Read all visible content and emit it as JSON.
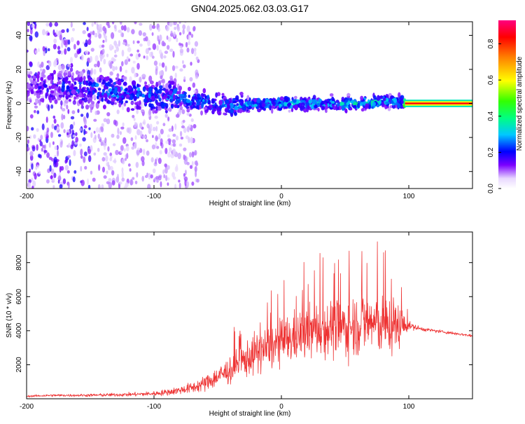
{
  "title": "GN04.2025.062.03.03.G17",
  "colors": {
    "snr_line": "#ee3333",
    "spec_low": "#d8c8f8",
    "spec_mid": "#7722ee",
    "spec_high": "#00cccc",
    "background": "#ffffff"
  },
  "chart_data": [
    {
      "type": "heatmap",
      "xlabel": "Height of straight line (km)",
      "ylabel": "Frequency (Hz)",
      "xlim": [
        -200,
        150
      ],
      "ylim": [
        -50,
        48
      ],
      "xticks": [
        -200,
        -100,
        0,
        100
      ],
      "yticks": [
        -40,
        -20,
        0,
        20,
        40
      ],
      "colorbar": {
        "label": "Normalized spectral amplitude",
        "range": [
          0.0,
          0.93
        ],
        "ticks": [
          "0.0",
          "0.2",
          "0.4",
          "0.6",
          "0.8"
        ],
        "colormap": "rainbow (white-violet-blue-cyan-green-yellow-red-magenta)"
      },
      "ridge": {
        "description": "dominant frequency vs height",
        "x": [
          -200,
          -170,
          -140,
          -110,
          -80,
          -60,
          -40,
          -20,
          0,
          20,
          40,
          60,
          80,
          95,
          100,
          120,
          150
        ],
        "frequency": [
          10,
          10,
          8,
          5,
          3,
          1,
          -2,
          0,
          0,
          0,
          0,
          0,
          1,
          1,
          0,
          0,
          0
        ],
        "amplitude": [
          0.15,
          0.2,
          0.25,
          0.25,
          0.25,
          0.25,
          0.25,
          0.3,
          0.3,
          0.3,
          0.3,
          0.35,
          0.3,
          0.3,
          0.85,
          0.85,
          0.85
        ]
      }
    },
    {
      "type": "line",
      "xlabel": "Height of straight line (km)",
      "ylabel": "SNR (10 * v/v)",
      "xlim": [
        -200,
        150
      ],
      "ylim": [
        0,
        9800
      ],
      "xticks": [
        -200,
        -100,
        0,
        100
      ],
      "yticks": [
        2000,
        4000,
        6000,
        8000
      ],
      "grid": false,
      "series": [
        {
          "x": [
            -200,
            -180,
            -160,
            -140,
            -120,
            -100,
            -90,
            -80,
            -70,
            -60,
            -50,
            -40,
            -30,
            -20,
            -10,
            0,
            10,
            20,
            30,
            40,
            50,
            60,
            70,
            80,
            90,
            100,
            110,
            120,
            130,
            140,
            150
          ],
          "y": [
            150,
            200,
            200,
            220,
            250,
            300,
            380,
            500,
            650,
            900,
            1300,
            1700,
            2200,
            2700,
            3000,
            3300,
            3600,
            3900,
            4100,
            4200,
            4200,
            4400,
            4500,
            4300,
            4300,
            4300,
            4100,
            4000,
            3900,
            3800,
            3700
          ],
          "spread": [
            60,
            80,
            80,
            100,
            120,
            150,
            200,
            250,
            350,
            500,
            700,
            900,
            1100,
            1300,
            1400,
            1500,
            1600,
            1700,
            1800,
            1900,
            1900,
            2000,
            2000,
            1900,
            1800,
            250,
            120,
            100,
            100,
            90,
            90
          ],
          "max": 9800
        }
      ]
    }
  ]
}
